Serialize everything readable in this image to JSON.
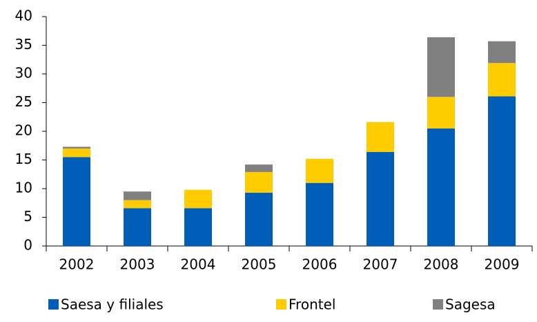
{
  "chart_data": {
    "type": "stacked_bar",
    "categories": [
      "2002",
      "2003",
      "2004",
      "2005",
      "2006",
      "2007",
      "2008",
      "2009"
    ],
    "series": [
      {
        "name": "Saesa y filiales",
        "color": "#005eb8",
        "values": [
          15.5,
          6.6,
          6.6,
          9.3,
          11.0,
          16.4,
          20.5,
          26.1
        ]
      },
      {
        "name": "Frontel",
        "color": "#ffcc00",
        "values": [
          1.5,
          1.4,
          3.2,
          3.6,
          4.2,
          5.2,
          5.5,
          5.8
        ]
      },
      {
        "name": "Sagesa",
        "color": "#808080",
        "values": [
          0.3,
          1.5,
          0,
          1.3,
          0,
          0,
          10.4,
          3.8
        ]
      }
    ],
    "ylim": [
      0,
      40
    ],
    "yticks": [
      0,
      5,
      10,
      15,
      20,
      25,
      30,
      35,
      40
    ],
    "grid": false,
    "legend": "bottom"
  }
}
